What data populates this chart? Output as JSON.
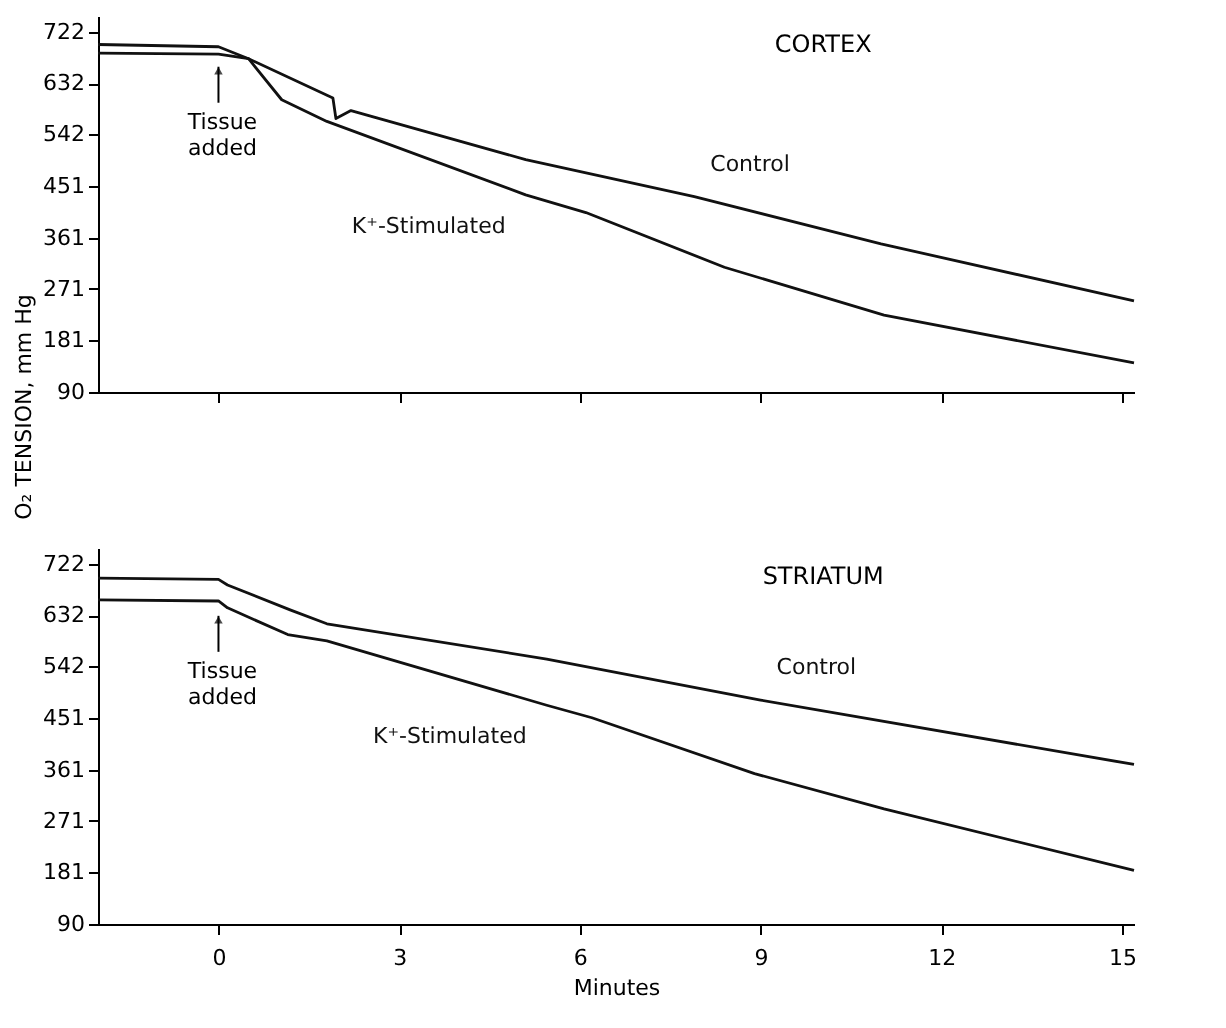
{
  "chart_data": [
    {
      "type": "line",
      "title": "CORTEX",
      "ylabel": "O₂ TENSION, mm Hg",
      "xlim": [
        -2,
        15.2
      ],
      "xticks": [
        0,
        3,
        6,
        9,
        12,
        15
      ],
      "ylim": [
        90,
        750
      ],
      "yticks": [
        90,
        181,
        271,
        361,
        451,
        542,
        632,
        722
      ],
      "tick_labels": "y",
      "grid": false,
      "legend": false,
      "marker": "none",
      "line_style": "solid",
      "annotations": [
        {
          "text": "Tissue added",
          "x": 0,
          "y": 675
        }
      ],
      "series": [
        {
          "name": "Control",
          "color": "#111111",
          "x": [
            -2,
            0,
            0.5,
            1.9,
            1.95,
            2.2,
            5.1,
            7.9,
            11,
            15.2
          ],
          "values": [
            700,
            696,
            675,
            606,
            570,
            584,
            498,
            433,
            350,
            250
          ]
        },
        {
          "name": "K⁺-Stimulated",
          "color": "#111111",
          "x": [
            -2,
            0,
            0.5,
            1.05,
            1.8,
            5.1,
            6.1,
            8.4,
            11.05,
            15.2
          ],
          "values": [
            685,
            683,
            675,
            603,
            565,
            436,
            405,
            309,
            225,
            141
          ]
        }
      ]
    },
    {
      "type": "line",
      "title": "STRIATUM",
      "xlabel": "Minutes",
      "xlim": [
        -2,
        15.2
      ],
      "xticks": [
        0,
        3,
        6,
        9,
        12,
        15
      ],
      "ylim": [
        90,
        750
      ],
      "yticks": [
        90,
        181,
        271,
        361,
        451,
        542,
        632,
        722
      ],
      "grid": false,
      "legend": false,
      "marker": "none",
      "line_style": "solid",
      "annotations": [
        {
          "text": "Tissue added",
          "x": 0,
          "y": 645
        }
      ],
      "series": [
        {
          "name": "Control",
          "color": "#111111",
          "x": [
            -2,
            0,
            0.15,
            1.2,
            1.8,
            5.45,
            9,
            15.2
          ],
          "values": [
            697,
            695,
            685,
            641,
            617,
            555,
            483,
            370
          ]
        },
        {
          "name": "K⁺-Stimulated",
          "color": "#111111",
          "x": [
            -2,
            0,
            0.15,
            1.15,
            1.8,
            5.45,
            6.2,
            8.9,
            11.05,
            15.2
          ],
          "values": [
            659,
            657,
            645,
            598,
            587,
            474,
            452,
            354,
            292,
            184
          ]
        }
      ]
    }
  ]
}
